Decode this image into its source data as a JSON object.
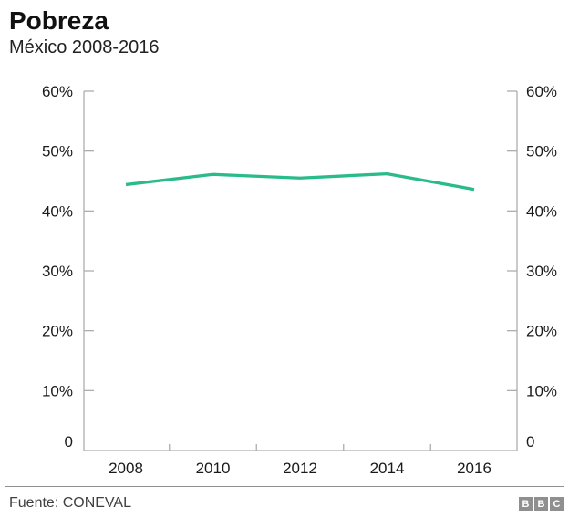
{
  "header": {
    "title": "Pobreza",
    "subtitle": "México 2008-2016"
  },
  "chart_data": {
    "type": "line",
    "title": "Pobreza",
    "subtitle": "México 2008-2016",
    "categories": [
      "2008",
      "2010",
      "2012",
      "2014",
      "2016"
    ],
    "series": [
      {
        "name": "Pobreza",
        "values": [
          44.4,
          46.1,
          45.5,
          46.2,
          43.6
        ]
      }
    ],
    "xlabel": "",
    "ylabel": "",
    "ylim": [
      0,
      60
    ],
    "y_ticks": [
      0,
      10,
      20,
      30,
      40,
      50,
      60
    ],
    "y_tick_labels": [
      "0",
      "10%",
      "20%",
      "30%",
      "40%",
      "50%",
      "60%"
    ],
    "dual_y_axis": true,
    "grid": false,
    "legend": "none",
    "tick_style": "between-categories",
    "line_color": "#2abb8b",
    "axis_color": "#adadad",
    "label_color": "#1a1a1a"
  },
  "footer": {
    "source": "Fuente: CONEVAL",
    "logo_letters": [
      "B",
      "B",
      "C"
    ]
  }
}
